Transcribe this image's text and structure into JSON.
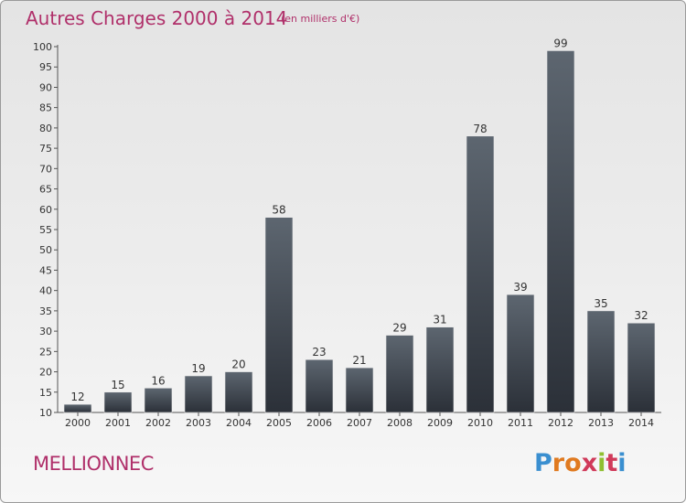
{
  "title": "Autres Charges 2000 à 2014",
  "subtitle": "(en milliers d'€)",
  "commune": "MELLIONNEC",
  "logo": {
    "letters": [
      "P",
      "r",
      "o",
      "x",
      "i",
      "t",
      "i"
    ],
    "colors": [
      "#3a8fd0",
      "#e07a20",
      "#e07a20",
      "#d03a5a",
      "#8fbf30",
      "#d03a5a",
      "#3a8fd0"
    ]
  },
  "colors": {
    "title": "#b0306a",
    "bar_top": "#5d6670",
    "bar_bottom": "#2b3038"
  },
  "chart_data": {
    "type": "bar",
    "categories": [
      "2000",
      "2001",
      "2002",
      "2003",
      "2004",
      "2005",
      "2006",
      "2007",
      "2008",
      "2009",
      "2010",
      "2011",
      "2012",
      "2013",
      "2014"
    ],
    "values": [
      12,
      15,
      16,
      19,
      20,
      58,
      23,
      21,
      29,
      31,
      78,
      39,
      99,
      35,
      32
    ],
    "title": "Autres Charges 2000 à 2014",
    "xlabel": "",
    "ylabel": "",
    "ylim": [
      10,
      100
    ],
    "yticks": [
      10,
      15,
      20,
      25,
      30,
      35,
      40,
      45,
      50,
      55,
      60,
      65,
      70,
      75,
      80,
      85,
      90,
      95,
      100
    ],
    "grid": false,
    "legend": "none"
  }
}
